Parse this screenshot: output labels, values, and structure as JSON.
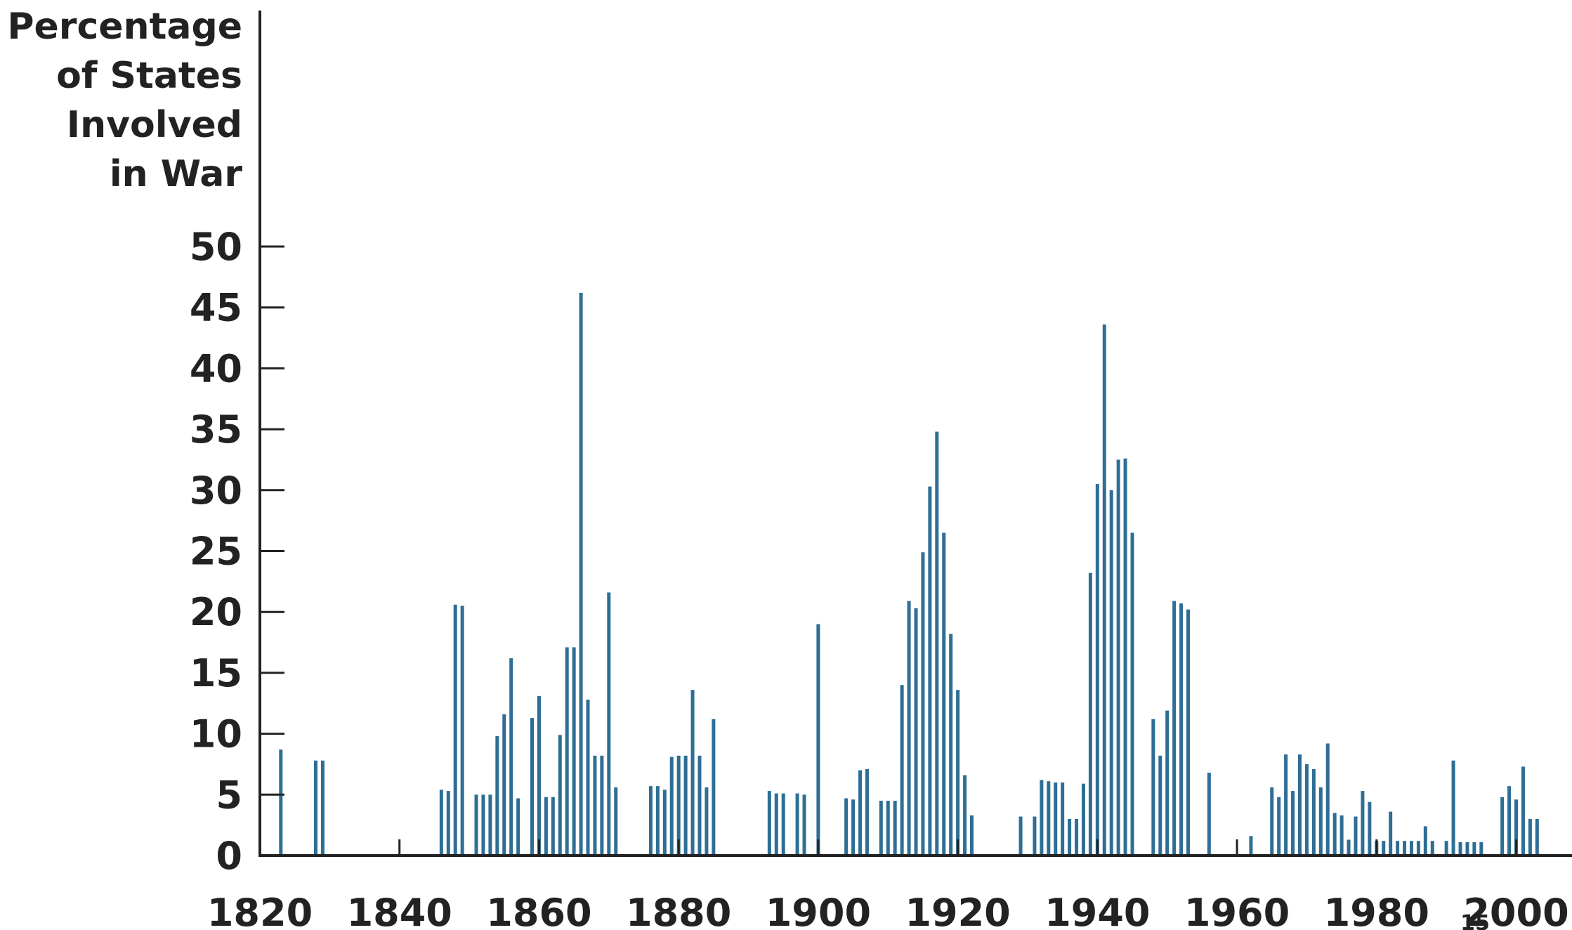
{
  "chart_data": {
    "type": "bar",
    "ylabel_lines": [
      "Percentage",
      "of States",
      "Involved",
      "in War"
    ],
    "ylabel": "Percentage of States Involved in War",
    "xlabel": "",
    "xlim": [
      1820,
      2008
    ],
    "ylim": [
      0,
      50
    ],
    "x_ticks": [
      1820,
      1840,
      1860,
      1880,
      1900,
      1920,
      1940,
      1960,
      1980,
      2000
    ],
    "y_ticks": [
      0,
      5,
      10,
      15,
      20,
      25,
      30,
      35,
      40,
      45,
      50
    ],
    "grid": false,
    "colors": {
      "bar": "#2e6e95",
      "axis": "#222222"
    },
    "series": [
      {
        "x": [
          1823,
          1828,
          1829,
          1846,
          1847,
          1848,
          1849,
          1851,
          1852,
          1853,
          1854,
          1855,
          1856,
          1857,
          1858,
          1859,
          1860,
          1861,
          1862,
          1863,
          1864,
          1865,
          1866,
          1867,
          1868,
          1869,
          1870,
          1871,
          1876,
          1877,
          1878,
          1879,
          1880,
          1881,
          1882,
          1883,
          1884,
          1885,
          1893,
          1894,
          1895,
          1897,
          1898,
          1900,
          1904,
          1905,
          1906,
          1907,
          1909,
          1910,
          1911,
          1912,
          1913,
          1914,
          1915,
          1916,
          1917,
          1918,
          1919,
          1920,
          1921,
          1922,
          1929,
          1931,
          1932,
          1933,
          1934,
          1935,
          1936,
          1937,
          1938,
          1939,
          1940,
          1941,
          1942,
          1943,
          1944,
          1945,
          1948,
          1949,
          1950,
          1951,
          1952,
          1953,
          1956,
          1962,
          1965,
          1966,
          1967,
          1968,
          1969,
          1970,
          1971,
          1972,
          1973,
          1974,
          1975,
          1976,
          1977,
          1978,
          1979,
          1980,
          1981,
          1982,
          1983,
          1984,
          1985,
          1986,
          1987,
          1988,
          1990,
          1991,
          1992,
          1993,
          1994,
          1995,
          1998,
          1999,
          2000,
          2001,
          2002,
          2003
        ],
        "values": [
          8.7,
          7.8,
          7.8,
          5.4,
          5.3,
          20.6,
          20.5,
          5.0,
          5.0,
          5.0,
          9.8,
          11.6,
          16.2,
          4.7,
          0,
          11.3,
          13.1,
          4.8,
          4.8,
          9.9,
          17.1,
          17.1,
          46.2,
          12.8,
          8.2,
          8.2,
          21.6,
          5.6,
          5.7,
          5.7,
          5.4,
          8.1,
          8.2,
          8.2,
          13.6,
          8.2,
          5.6,
          11.2,
          5.3,
          5.1,
          5.1,
          5.1,
          5.0,
          19.0,
          4.7,
          4.6,
          7.0,
          7.1,
          4.5,
          4.5,
          4.5,
          14.0,
          20.9,
          20.3,
          24.9,
          30.3,
          34.8,
          26.5,
          18.2,
          13.6,
          6.6,
          3.3,
          3.2,
          3.2,
          6.2,
          6.1,
          6.0,
          6.0,
          3.0,
          3.0,
          5.9,
          23.2,
          30.5,
          43.6,
          30.0,
          32.5,
          32.6,
          26.5,
          11.2,
          8.2,
          11.9,
          20.9,
          20.7,
          20.2,
          6.8,
          1.6,
          5.6,
          4.8,
          8.3,
          5.3,
          8.3,
          7.5,
          7.1,
          5.6,
          9.2,
          3.5,
          3.3,
          1.3,
          3.2,
          5.3,
          4.4,
          1.2,
          1.2,
          3.6,
          1.2,
          1.2,
          1.2,
          1.2,
          2.4,
          1.2,
          1.2,
          7.8,
          1.1,
          1.1,
          1.1,
          1.1,
          4.8,
          5.7,
          4.6,
          7.3,
          3.0,
          3.0
        ]
      }
    ]
  },
  "page_number": "15"
}
